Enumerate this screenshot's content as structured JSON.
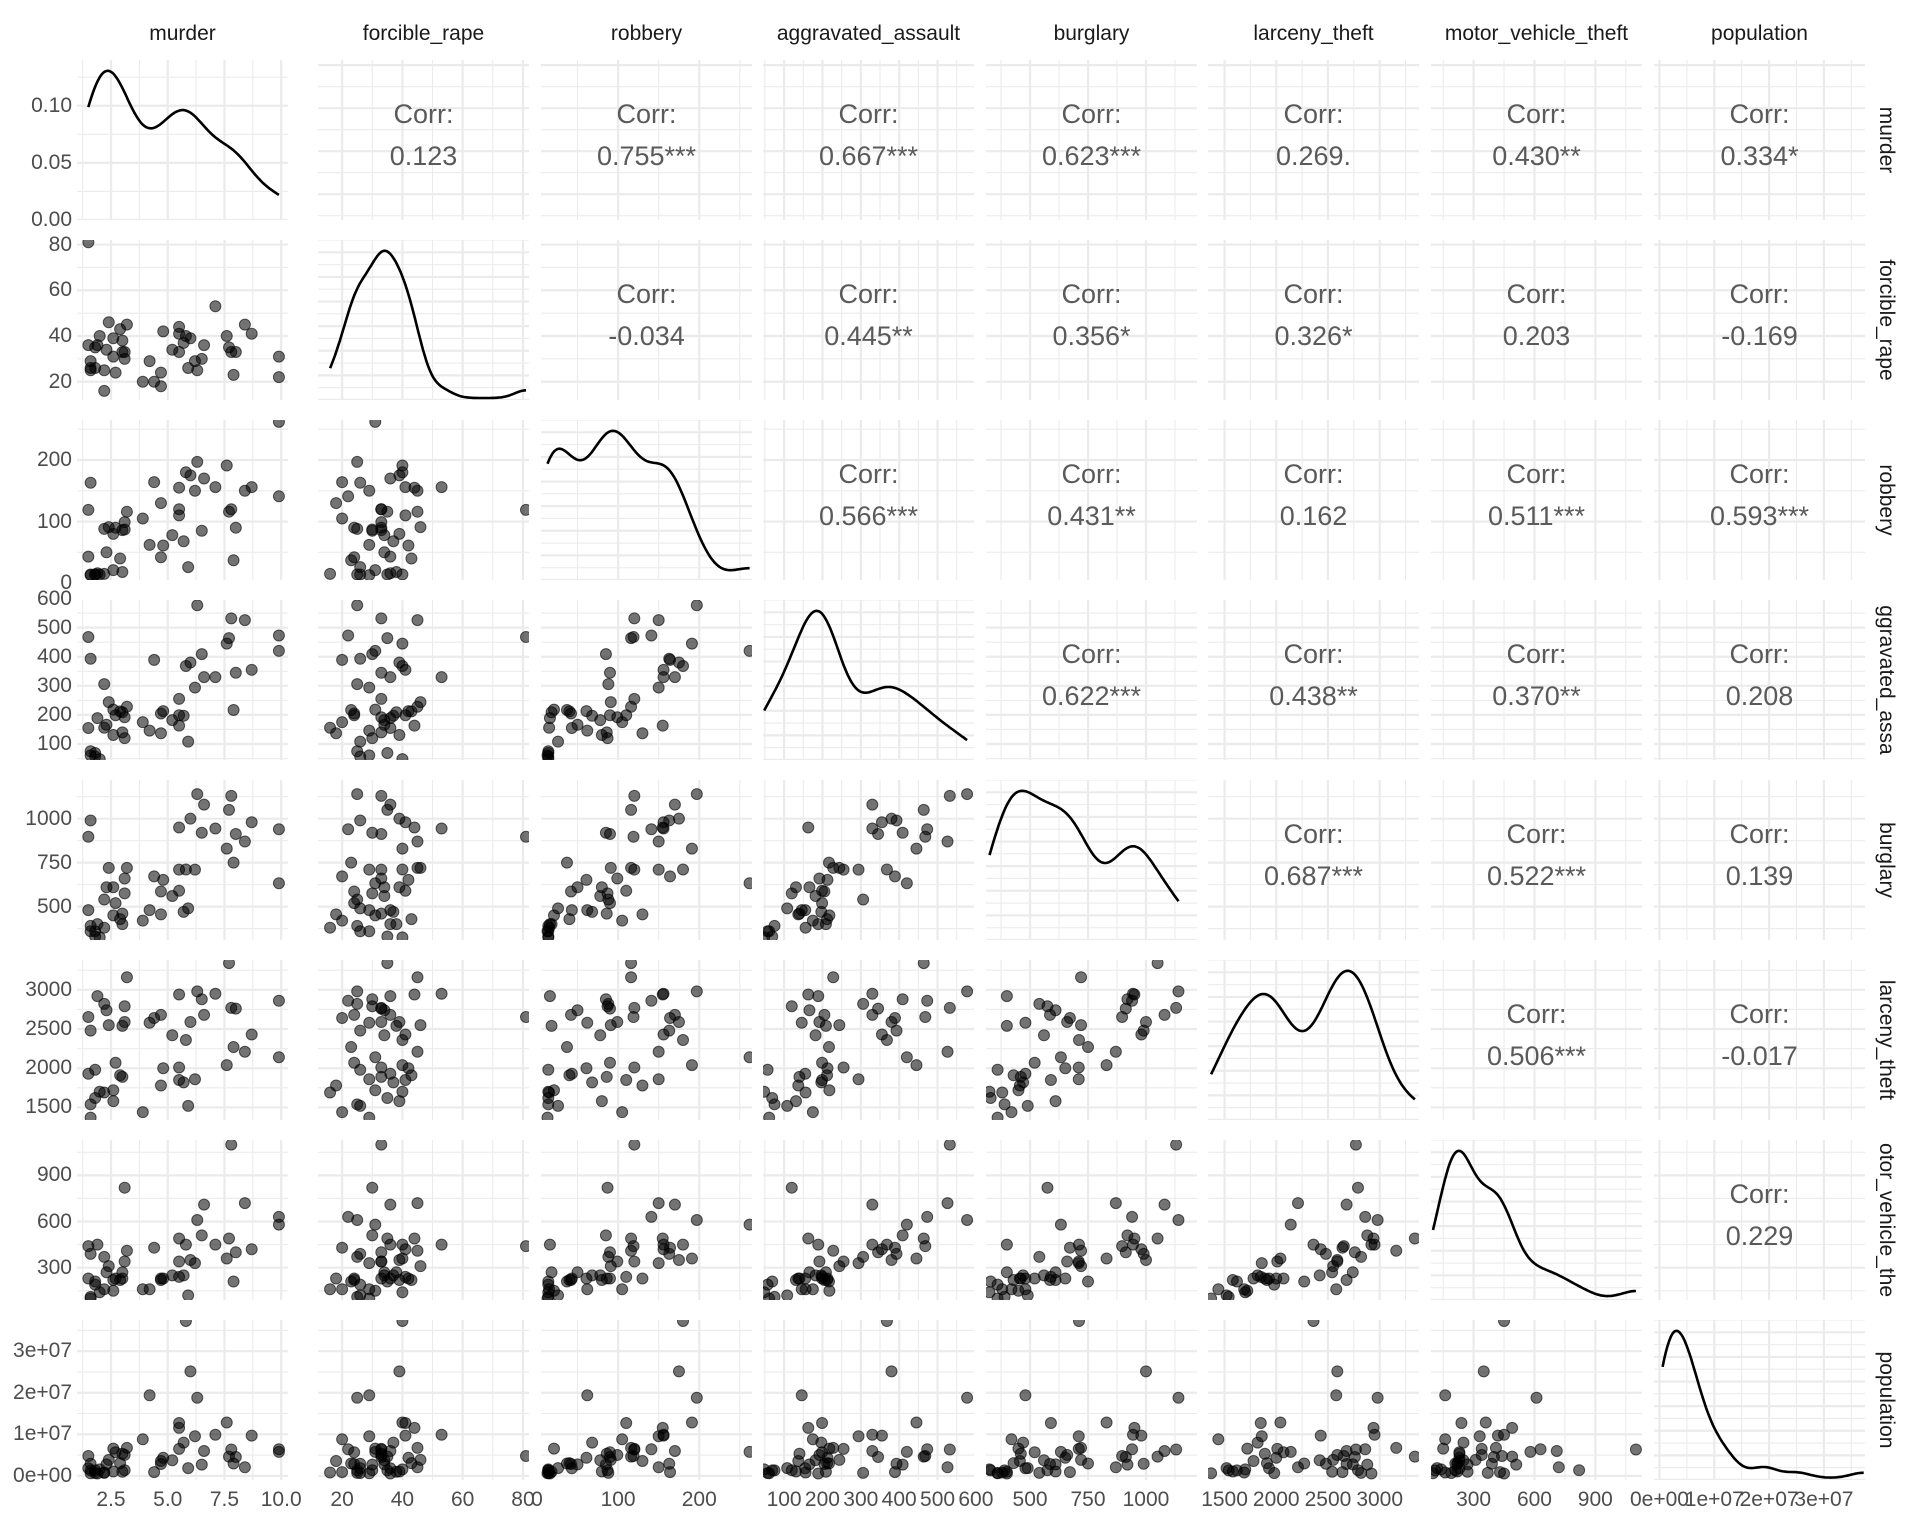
{
  "chart_data": {
    "type": "scatter-matrix",
    "title": "",
    "variables": [
      "murder",
      "forcible_rape",
      "robbery",
      "aggravated_assault",
      "burglary",
      "larceny_theft",
      "motor_vehicle_theft",
      "population"
    ],
    "column_labels": [
      "murder",
      "forcible_rape",
      "robbery",
      "aggravated_assault",
      "burglary",
      "larceny_theft",
      "motor_vehicle_theft",
      "population"
    ],
    "row_labels": [
      "murder",
      "forcible_rape",
      "robbery",
      "aggravated_assault",
      "burglary",
      "larceny_theft",
      "motor_vehicle_theft",
      "population"
    ],
    "row_labels_visible": [
      "murder",
      "forcible_rape",
      "robbery",
      "ggravated_assa",
      "burglary",
      "larceny_theft",
      "otor_vehicle_the",
      "population"
    ],
    "corr_prefix": "Corr:",
    "correlations": [
      {
        "row": "murder",
        "col": "forcible_rape",
        "value": "0.123"
      },
      {
        "row": "murder",
        "col": "robbery",
        "value": "0.755***"
      },
      {
        "row": "murder",
        "col": "aggravated_assault",
        "value": "0.667***"
      },
      {
        "row": "murder",
        "col": "burglary",
        "value": "0.623***"
      },
      {
        "row": "murder",
        "col": "larceny_theft",
        "value": "0.269."
      },
      {
        "row": "murder",
        "col": "motor_vehicle_theft",
        "value": "0.430**"
      },
      {
        "row": "murder",
        "col": "population",
        "value": "0.334*"
      },
      {
        "row": "forcible_rape",
        "col": "robbery",
        "value": "-0.034"
      },
      {
        "row": "forcible_rape",
        "col": "aggravated_assault",
        "value": "0.445**"
      },
      {
        "row": "forcible_rape",
        "col": "burglary",
        "value": "0.356*"
      },
      {
        "row": "forcible_rape",
        "col": "larceny_theft",
        "value": "0.326*"
      },
      {
        "row": "forcible_rape",
        "col": "motor_vehicle_theft",
        "value": "0.203"
      },
      {
        "row": "forcible_rape",
        "col": "population",
        "value": "-0.169"
      },
      {
        "row": "robbery",
        "col": "aggravated_assault",
        "value": "0.566***"
      },
      {
        "row": "robbery",
        "col": "burglary",
        "value": "0.431**"
      },
      {
        "row": "robbery",
        "col": "larceny_theft",
        "value": "0.162"
      },
      {
        "row": "robbery",
        "col": "motor_vehicle_theft",
        "value": "0.511***"
      },
      {
        "row": "robbery",
        "col": "population",
        "value": "0.593***"
      },
      {
        "row": "aggravated_assault",
        "col": "burglary",
        "value": "0.622***"
      },
      {
        "row": "aggravated_assault",
        "col": "larceny_theft",
        "value": "0.438**"
      },
      {
        "row": "aggravated_assault",
        "col": "motor_vehicle_theft",
        "value": "0.370**"
      },
      {
        "row": "aggravated_assault",
        "col": "population",
        "value": "0.208"
      },
      {
        "row": "burglary",
        "col": "larceny_theft",
        "value": "0.687***"
      },
      {
        "row": "burglary",
        "col": "motor_vehicle_theft",
        "value": "0.522***"
      },
      {
        "row": "burglary",
        "col": "population",
        "value": "0.139"
      },
      {
        "row": "larceny_theft",
        "col": "motor_vehicle_theft",
        "value": "0.506***"
      },
      {
        "row": "larceny_theft",
        "col": "population",
        "value": "-0.017"
      },
      {
        "row": "motor_vehicle_theft",
        "col": "population",
        "value": "0.229"
      }
    ],
    "axes": {
      "murder": {
        "range": [
          1.0,
          10.3
        ],
        "ticks": [
          "2.5",
          "5.0",
          "7.5",
          "10.0"
        ],
        "tick_values": [
          2.5,
          5.0,
          7.5,
          10.0
        ],
        "density_ticks": [
          "0.00",
          "0.05",
          "0.10"
        ],
        "density_tick_values": [
          0,
          0.05,
          0.1
        ],
        "density_range": [
          0,
          0.14
        ]
      },
      "forcible_rape": {
        "range": [
          12,
          82
        ],
        "ticks": [
          "20",
          "40",
          "60",
          "80"
        ],
        "tick_values": [
          20,
          40,
          60,
          80
        ]
      },
      "robbery": {
        "range": [
          5,
          265
        ],
        "ticks": [
          "0",
          "100",
          "200"
        ],
        "tick_values": [
          0,
          100,
          200
        ]
      },
      "aggravated_assault": {
        "range": [
          45,
          595
        ],
        "ticks": [
          "100",
          "200",
          "300",
          "400",
          "500",
          "600"
        ],
        "tick_values": [
          100,
          200,
          300,
          400,
          500,
          600
        ]
      },
      "burglary": {
        "range": [
          310,
          1220
        ],
        "ticks": [
          "500",
          "750",
          "1000"
        ],
        "tick_values": [
          500,
          750,
          1000
        ]
      },
      "larceny_theft": {
        "range": [
          1340,
          3380
        ],
        "ticks": [
          "1500",
          "2000",
          "2500",
          "3000"
        ],
        "tick_values": [
          1500,
          2000,
          2500,
          3000
        ]
      },
      "motor_vehicle_theft": {
        "range": [
          90,
          1130
        ],
        "ticks": [
          "300",
          "600",
          "900"
        ],
        "tick_values": [
          300,
          600,
          900
        ]
      },
      "population": {
        "range": [
          -1000000.0,
          37500000.0
        ],
        "ticks": [
          "0e+00",
          "1e+07",
          "2e+07",
          "3e+07"
        ],
        "tick_values": [
          0,
          10000000.0,
          20000000.0,
          30000000.0
        ]
      }
    },
    "observations": {
      "murder": [
        1.5,
        2.2,
        9.9,
        1.6,
        5.8,
        3.1,
        4.7,
        4.4,
        6.3,
        8.7,
        3.1,
        2.0,
        7.6,
        5.5,
        2.9,
        4.7,
        4.8,
        8.0,
        1.6,
        9.9,
        2.6,
        7.1,
        3.0,
        7.9,
        6.6,
        3.0,
        1.5,
        6.5,
        1.8,
        3.9,
        8.4,
        4.2,
        6.2,
        1.8,
        5.5,
        5.2,
        2.4,
        5.5,
        2.6,
        7.7,
        2.2,
        7.8,
        6.0,
        2.3,
        1.6,
        5.7,
        3.2,
        5.9,
        2.7,
        1.9
      ],
      "forcible_rape": [
        81.0,
        25.0,
        22.0,
        26.0,
        40.0,
        33.0,
        18.0,
        20.0,
        25.0,
        41.0,
        30.0,
        40.0,
        40.0,
        33.0,
        43.0,
        24.0,
        42.0,
        33.0,
        25.0,
        31.0,
        31.0,
        53.0,
        33.0,
        23.0,
        36.0,
        38.0,
        36.0,
        30.0,
        35.0,
        20.0,
        45.0,
        29.0,
        29.0,
        26.0,
        44.0,
        34.0,
        46.0,
        41.0,
        39.0,
        35.0,
        16.0,
        33.0,
        39.0,
        34.0,
        29.0,
        37.0,
        45.0,
        26.0,
        24.0,
        36.0
      ],
      "robbery": [
        119,
        88,
        141,
        163,
        180,
        99,
        130,
        164,
        197,
        156,
        87,
        14,
        191,
        120,
        40,
        42,
        61,
        90,
        14,
        262,
        21,
        156,
        86,
        37,
        170,
        18,
        43,
        85,
        14,
        105,
        150,
        62,
        150,
        14,
        155,
        78,
        91,
        110,
        80,
        116,
        15,
        120,
        175,
        50,
        13,
        68,
        116,
        26,
        90,
        16
      ],
      "aggravated_assault": [
        468,
        306,
        473,
        393,
        368,
        192,
        137,
        389,
        577,
        355,
        120,
        48,
        445,
        255,
        212,
        205,
        213,
        345,
        75,
        420,
        218,
        330,
        140,
        217,
        330,
        209,
        155,
        409,
        69,
        175,
        526,
        146,
        294,
        57,
        163,
        182,
        244,
        199,
        131,
        464,
        156,
        532,
        380,
        166,
        61,
        197,
        228,
        108,
        199,
        189
      ],
      "burglary": [
        897,
        540,
        940,
        990,
        711,
        660,
        456,
        672,
        1140,
        980,
        575,
        325,
        830,
        710,
        429,
        586,
        652,
        913,
        390,
        633,
        450,
        944,
        460,
        750,
        1080,
        400,
        480,
        920,
        330,
        420,
        870,
        480,
        710,
        360,
        950,
        560,
        720,
        590,
        610,
        1050,
        380,
        1130,
        1000,
        610,
        360,
        470,
        720,
        490,
        520,
        400
      ],
      "larceny_theft": [
        2653,
        2820,
        2860,
        2480,
        2360,
        2590,
        1780,
        2640,
        2980,
        2430,
        2790,
        1700,
        2040,
        2010,
        1910,
        2680,
        2000,
        2760,
        1540,
        2140,
        1720,
        2950,
        1890,
        2270,
        2680,
        2540,
        1930,
        2880,
        1620,
        1440,
        2210,
        2580,
        1860,
        1980,
        2940,
        2420,
        2550,
        1850,
        1580,
        3340,
        1690,
        2770,
        2590,
        2740,
        1370,
        1820,
        3160,
        1520,
        2070,
        2920
      ],
      "motor_vehicle_theft": [
        440,
        370,
        630,
        390,
        450,
        340,
        230,
        430,
        610,
        420,
        820,
        140,
        360,
        340,
        220,
        220,
        230,
        400,
        110,
        580,
        150,
        450,
        230,
        210,
        710,
        270,
        230,
        510,
        210,
        160,
        720,
        160,
        330,
        190,
        490,
        250,
        310,
        240,
        220,
        490,
        160,
        1100,
        350,
        270,
        100,
        250,
        410,
        120,
        230,
        450
      ],
      "population": [
        4779736,
        710231,
        6392017,
        2915918,
        37253956,
        5029196,
        3574097,
        897934,
        18801310,
        9687653,
        1360301,
        1567582,
        12830632,
        6483802,
        3046355,
        2853118,
        4339367,
        4533372,
        1328361,
        5773552,
        6547629,
        9883640,
        5303925,
        2967297,
        5988927,
        989415,
        1826341,
        2700551,
        1316470,
        8791894,
        2059179,
        19378102,
        9535483,
        672591,
        11536504,
        3751351,
        3831074,
        12702379,
        1052567,
        4625364,
        814180,
        6346105,
        25145561,
        2763885,
        625741,
        8001024,
        6724540,
        1852994,
        5686986,
        563626
      ]
    }
  }
}
